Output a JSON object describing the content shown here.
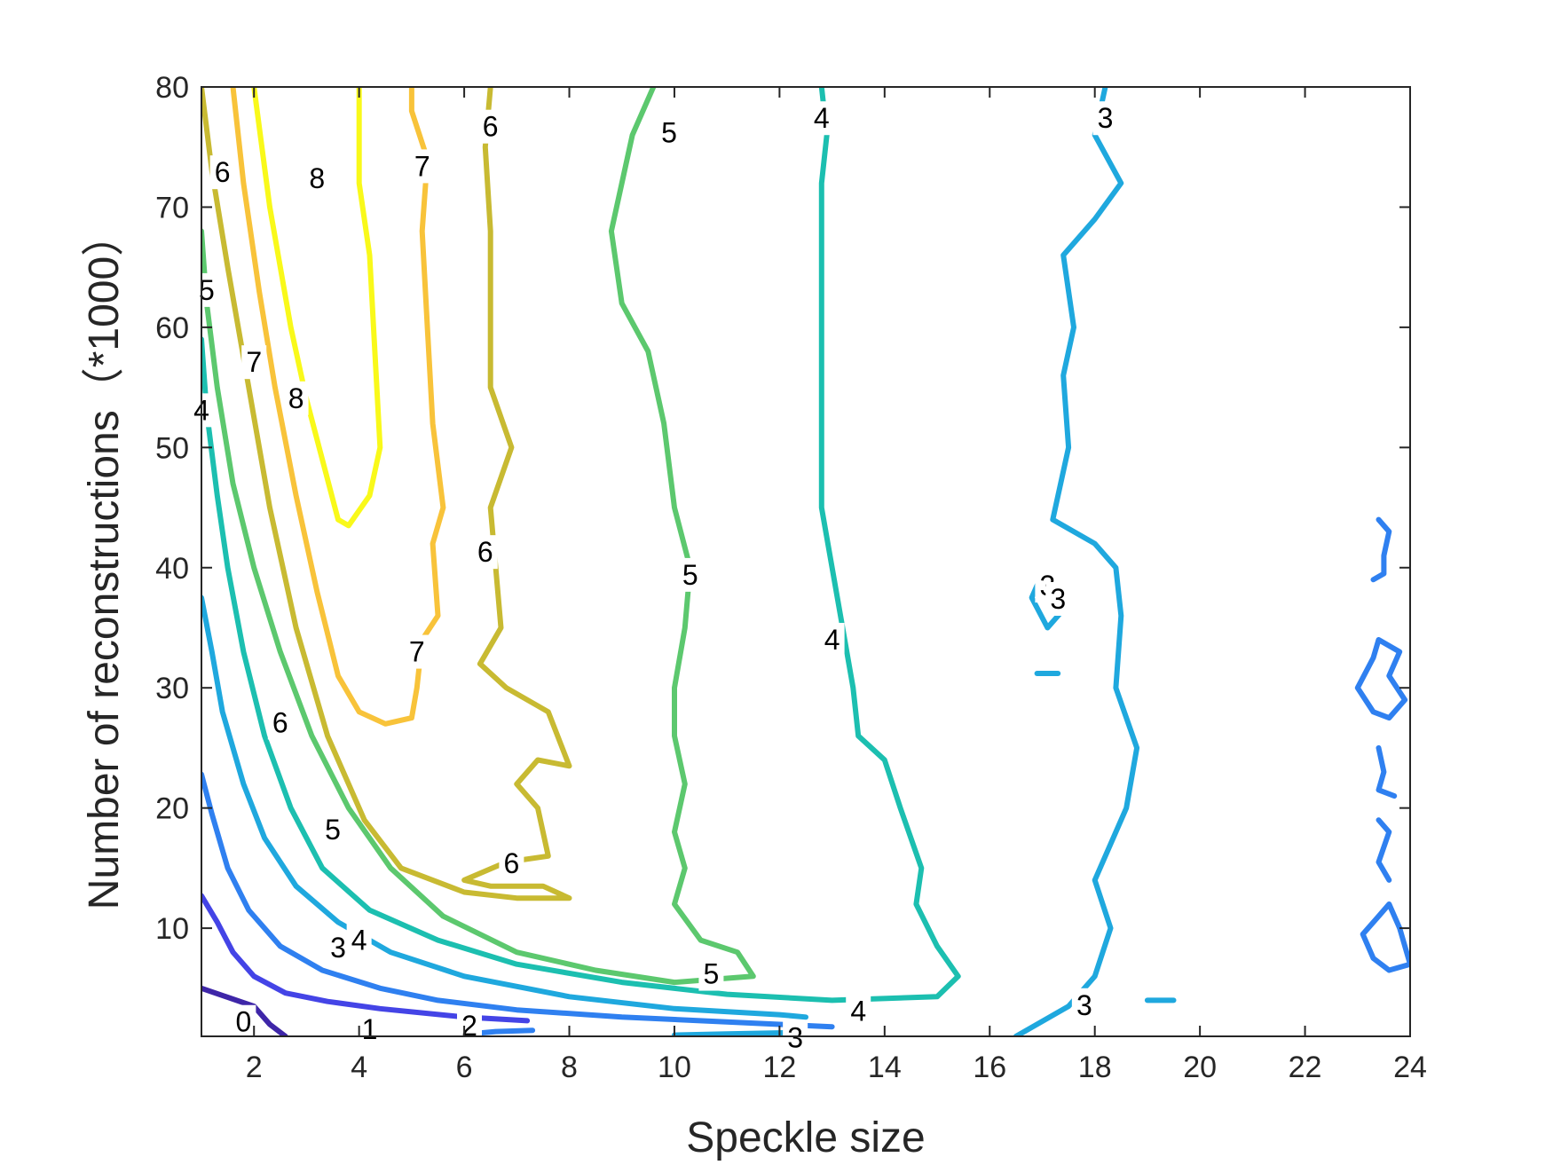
{
  "chart_data": {
    "type": "contour",
    "title": "",
    "xlabel": "Speckle size",
    "ylabel": "Number of reconstructions（*1000）",
    "xlim": [
      1,
      24
    ],
    "ylim": [
      1,
      80
    ],
    "xticks": [
      2,
      4,
      6,
      8,
      10,
      12,
      14,
      16,
      18,
      20,
      22,
      24
    ],
    "yticks": [
      10,
      20,
      30,
      40,
      50,
      60,
      70,
      80
    ],
    "grid": false,
    "colors": {
      "0": "#3e26a8",
      "1": "#4444e6",
      "2": "#2f80f0",
      "3": "#1fa8de",
      "4": "#1cbfb0",
      "5": "#5cc86e",
      "6": "#c8ba32",
      "7": "#f8c33a",
      "8": "#f9f91a"
    },
    "contours": [
      {
        "level": 0,
        "points": [
          [
            1.0,
            5.0
          ],
          [
            1.6,
            4.1
          ],
          [
            2.0,
            3.5
          ],
          [
            2.3,
            2.0
          ],
          [
            2.6,
            1.0
          ]
        ]
      },
      {
        "level": 1,
        "points": [
          [
            1.0,
            12.7
          ],
          [
            1.3,
            10.5
          ],
          [
            1.6,
            8.0
          ],
          [
            2.0,
            6.0
          ],
          [
            2.6,
            4.6
          ],
          [
            3.4,
            3.9
          ],
          [
            4.4,
            3.3
          ],
          [
            6.0,
            2.6
          ],
          [
            7.2,
            2.3
          ]
        ]
      },
      {
        "level": 2,
        "points": [
          [
            1.0,
            22.8
          ],
          [
            1.2,
            19.5
          ],
          [
            1.5,
            15.0
          ],
          [
            1.9,
            11.5
          ],
          [
            2.5,
            8.5
          ],
          [
            3.3,
            6.5
          ],
          [
            4.4,
            5.0
          ],
          [
            5.5,
            4.0
          ],
          [
            7.0,
            3.2
          ],
          [
            9.0,
            2.6
          ],
          [
            12.0,
            2.0
          ],
          [
            13.0,
            1.8
          ]
        ]
      },
      {
        "level": 2,
        "points": [
          [
            6.1,
            1.2
          ],
          [
            6.6,
            1.4
          ],
          [
            7.3,
            1.5
          ]
        ]
      },
      {
        "level": 3,
        "points": [
          [
            1.0,
            37.5
          ],
          [
            1.2,
            33.0
          ],
          [
            1.4,
            28.0
          ],
          [
            1.8,
            22.0
          ],
          [
            2.2,
            17.5
          ],
          [
            2.8,
            13.5
          ],
          [
            3.6,
            10.5
          ],
          [
            4.6,
            8.0
          ],
          [
            6.0,
            6.0
          ],
          [
            8.0,
            4.3
          ],
          [
            10.0,
            3.3
          ],
          [
            12.0,
            2.8
          ],
          [
            12.5,
            2.6
          ]
        ]
      },
      {
        "level": 3,
        "points": [
          [
            10.0,
            1.1
          ],
          [
            11.0,
            1.2
          ],
          [
            12.2,
            1.3
          ]
        ]
      },
      {
        "level": 3,
        "points": [
          [
            18.2,
            80.0
          ],
          [
            18.0,
            76.0
          ],
          [
            18.5,
            72.0
          ],
          [
            18.0,
            69.0
          ],
          [
            17.4,
            66.0
          ],
          [
            17.6,
            60.0
          ],
          [
            17.4,
            56.0
          ],
          [
            17.5,
            50.0
          ],
          [
            17.2,
            44.0
          ],
          [
            18.0,
            42.0
          ],
          [
            18.4,
            40.0
          ],
          [
            18.5,
            36.0
          ],
          [
            18.4,
            30.0
          ],
          [
            18.8,
            25.0
          ],
          [
            18.6,
            20.0
          ],
          [
            18.0,
            14.0
          ],
          [
            18.3,
            10.0
          ],
          [
            18.0,
            6.0
          ],
          [
            17.5,
            3.5
          ],
          [
            16.5,
            1.0
          ]
        ]
      },
      {
        "level": 3,
        "points": [
          [
            17.2,
            38.5
          ],
          [
            17.4,
            36.5
          ],
          [
            17.1,
            35.0
          ],
          [
            16.8,
            37.5
          ],
          [
            17.0,
            39.5
          ]
        ]
      },
      {
        "level": 3,
        "points": [
          [
            16.9,
            31.2
          ],
          [
            17.3,
            31.2
          ]
        ]
      },
      {
        "level": 3,
        "points": [
          [
            19.0,
            4.0
          ],
          [
            19.5,
            4.0
          ]
        ]
      },
      {
        "level": 4,
        "points": [
          [
            1.0,
            59.0
          ],
          [
            1.1,
            53.0
          ],
          [
            1.3,
            46.0
          ],
          [
            1.5,
            40.0
          ],
          [
            1.8,
            33.0
          ],
          [
            2.2,
            26.0
          ],
          [
            2.7,
            20.0
          ],
          [
            3.3,
            15.0
          ],
          [
            4.2,
            11.5
          ],
          [
            5.5,
            9.0
          ],
          [
            7.0,
            7.0
          ],
          [
            9.0,
            5.5
          ],
          [
            11.0,
            4.5
          ],
          [
            13.0,
            4.0
          ],
          [
            15.0,
            4.3
          ],
          [
            15.4,
            6.0
          ],
          [
            15.0,
            8.5
          ],
          [
            14.6,
            12.0
          ],
          [
            14.7,
            15.0
          ],
          [
            14.3,
            20.0
          ],
          [
            14.0,
            24.0
          ],
          [
            13.5,
            26.0
          ],
          [
            13.4,
            30.0
          ],
          [
            13.2,
            35.0
          ],
          [
            12.8,
            45.0
          ],
          [
            12.8,
            55.0
          ],
          [
            12.8,
            65.0
          ],
          [
            12.8,
            72.0
          ],
          [
            12.9,
            76.0
          ],
          [
            12.8,
            80.0
          ]
        ]
      },
      {
        "level": 5,
        "points": [
          [
            1.0,
            68.0
          ],
          [
            1.1,
            62.0
          ],
          [
            1.3,
            55.0
          ],
          [
            1.6,
            47.0
          ],
          [
            2.0,
            40.0
          ],
          [
            2.5,
            33.0
          ],
          [
            3.1,
            26.0
          ],
          [
            3.8,
            20.0
          ],
          [
            4.6,
            15.0
          ],
          [
            5.6,
            11.0
          ],
          [
            7.0,
            8.0
          ],
          [
            8.5,
            6.5
          ],
          [
            10.0,
            5.5
          ],
          [
            11.5,
            6.0
          ],
          [
            11.2,
            8.0
          ],
          [
            10.5,
            9.0
          ],
          [
            10.0,
            12.0
          ],
          [
            10.2,
            15.0
          ],
          [
            10.0,
            18.0
          ],
          [
            10.2,
            22.0
          ],
          [
            10.0,
            26.0
          ],
          [
            10.0,
            30.0
          ],
          [
            10.2,
            35.0
          ],
          [
            10.3,
            40.0
          ],
          [
            10.0,
            45.0
          ],
          [
            9.8,
            52.0
          ],
          [
            9.5,
            58.0
          ],
          [
            9.0,
            62.0
          ],
          [
            8.8,
            68.0
          ],
          [
            9.2,
            76.0
          ],
          [
            9.6,
            80.0
          ]
        ]
      },
      {
        "level": 6,
        "points": [
          [
            1.0,
            80.0
          ],
          [
            1.2,
            73.0
          ],
          [
            1.5,
            65.0
          ],
          [
            1.9,
            55.0
          ],
          [
            2.3,
            45.0
          ],
          [
            2.8,
            35.0
          ],
          [
            3.4,
            26.0
          ],
          [
            4.1,
            19.0
          ],
          [
            4.8,
            15.0
          ],
          [
            6.0,
            13.0
          ],
          [
            7.0,
            12.5
          ],
          [
            8.0,
            12.5
          ],
          [
            7.5,
            13.5
          ],
          [
            6.5,
            13.5
          ],
          [
            6.0,
            14.0
          ],
          [
            6.8,
            15.5
          ],
          [
            7.6,
            16.0
          ],
          [
            7.4,
            20.0
          ],
          [
            7.0,
            22.0
          ],
          [
            7.4,
            24.0
          ],
          [
            8.0,
            23.5
          ],
          [
            7.6,
            28.0
          ],
          [
            6.8,
            30.0
          ],
          [
            6.3,
            32.0
          ],
          [
            6.7,
            35.0
          ],
          [
            6.6,
            40.0
          ],
          [
            6.5,
            45.0
          ],
          [
            6.9,
            50.0
          ],
          [
            6.5,
            55.0
          ],
          [
            6.5,
            60.0
          ],
          [
            6.5,
            68.0
          ],
          [
            6.4,
            75.0
          ],
          [
            6.5,
            80.0
          ]
        ]
      },
      {
        "level": 7,
        "points": [
          [
            1.6,
            80.0
          ],
          [
            1.8,
            72.0
          ],
          [
            2.1,
            63.0
          ],
          [
            2.4,
            55.0
          ],
          [
            2.8,
            46.0
          ],
          [
            3.2,
            38.0
          ],
          [
            3.6,
            31.0
          ],
          [
            4.0,
            28.0
          ],
          [
            4.5,
            27.0
          ],
          [
            5.0,
            27.5
          ],
          [
            5.1,
            30.0
          ],
          [
            5.2,
            34.0
          ],
          [
            5.5,
            36.0
          ],
          [
            5.4,
            42.0
          ],
          [
            5.6,
            45.0
          ],
          [
            5.4,
            52.0
          ],
          [
            5.3,
            60.0
          ],
          [
            5.2,
            68.0
          ],
          [
            5.3,
            74.0
          ],
          [
            5.0,
            78.0
          ],
          [
            5.0,
            80.0
          ]
        ]
      },
      {
        "level": 8,
        "points": [
          [
            2.0,
            80.0
          ],
          [
            2.3,
            70.0
          ],
          [
            2.7,
            60.0
          ],
          [
            3.0,
            54.0
          ],
          [
            3.3,
            49.0
          ],
          [
            3.6,
            44.0
          ],
          [
            3.8,
            43.5
          ],
          [
            4.2,
            46.0
          ],
          [
            4.4,
            50.0
          ],
          [
            4.3,
            58.0
          ],
          [
            4.2,
            66.0
          ],
          [
            4.0,
            72.0
          ],
          [
            4.0,
            80.0
          ]
        ]
      },
      {
        "level": 2,
        "points": [
          [
            23.4,
            44.0
          ],
          [
            23.6,
            43.0
          ],
          [
            23.5,
            41.0
          ],
          [
            23.5,
            39.5
          ],
          [
            23.3,
            39.0
          ]
        ]
      },
      {
        "level": 2,
        "points": [
          [
            23.4,
            34.0
          ],
          [
            23.8,
            33.0
          ],
          [
            23.6,
            31.0
          ],
          [
            23.9,
            29.0
          ],
          [
            23.6,
            27.5
          ],
          [
            23.3,
            28.0
          ],
          [
            23.0,
            30.0
          ],
          [
            23.3,
            32.5
          ],
          [
            23.4,
            34.0
          ]
        ]
      },
      {
        "level": 2,
        "points": [
          [
            23.4,
            25.0
          ],
          [
            23.5,
            23.0
          ],
          [
            23.4,
            21.5
          ],
          [
            23.7,
            21.0
          ]
        ]
      },
      {
        "level": 2,
        "points": [
          [
            23.4,
            19.0
          ],
          [
            23.6,
            18.0
          ],
          [
            23.4,
            15.5
          ],
          [
            23.6,
            14.0
          ]
        ]
      },
      {
        "level": 2,
        "points": [
          [
            23.4,
            11.0
          ],
          [
            23.6,
            12.0
          ],
          [
            23.8,
            10.0
          ],
          [
            24.0,
            7.0
          ],
          [
            23.6,
            6.5
          ],
          [
            23.3,
            7.5
          ],
          [
            23.1,
            9.5
          ],
          [
            23.4,
            11.0
          ]
        ]
      }
    ],
    "labels": [
      {
        "text": "0",
        "level": 0,
        "x": 1.8,
        "y": 2.2
      },
      {
        "text": "1",
        "level": 1,
        "x": 4.2,
        "y": 1.6
      },
      {
        "text": "2",
        "level": 2,
        "x": 6.1,
        "y": 1.9
      },
      {
        "text": "3",
        "level": 3,
        "x": 3.6,
        "y": 8.4
      },
      {
        "text": "3",
        "level": 3,
        "x": 12.3,
        "y": 0.9
      },
      {
        "text": "3",
        "level": 3,
        "x": 17.8,
        "y": 3.6
      },
      {
        "text": "3",
        "level": 3,
        "x": 17.1,
        "y": 38.5
      },
      {
        "text": "3",
        "level": 3,
        "x": 17.3,
        "y": 37.4
      },
      {
        "text": "3",
        "level": 3,
        "x": 18.2,
        "y": 77.4
      },
      {
        "text": "4",
        "level": 4,
        "x": 4.0,
        "y": 9.0
      },
      {
        "text": "4",
        "level": 4,
        "x": 1.0,
        "y": 53.1
      },
      {
        "text": "4",
        "level": 4,
        "x": 13.5,
        "y": 3.1
      },
      {
        "text": "4",
        "level": 4,
        "x": 13.0,
        "y": 34.0
      },
      {
        "text": "4",
        "level": 4,
        "x": 12.8,
        "y": 77.4
      },
      {
        "text": "5",
        "level": 5,
        "x": 3.5,
        "y": 18.2
      },
      {
        "text": "5",
        "level": 5,
        "x": 1.1,
        "y": 63.1
      },
      {
        "text": "5",
        "level": 5,
        "x": 10.7,
        "y": 6.2
      },
      {
        "text": "5",
        "level": 5,
        "x": 10.3,
        "y": 39.4
      },
      {
        "text": "5",
        "level": 5,
        "x": 9.9,
        "y": 76.2
      },
      {
        "text": "6",
        "level": 6,
        "x": 2.5,
        "y": 27.1
      },
      {
        "text": "6",
        "level": 6,
        "x": 1.4,
        "y": 72.9
      },
      {
        "text": "6",
        "level": 6,
        "x": 6.9,
        "y": 15.4
      },
      {
        "text": "6",
        "level": 6,
        "x": 6.4,
        "y": 41.3
      },
      {
        "text": "6",
        "level": 6,
        "x": 6.5,
        "y": 76.7
      },
      {
        "text": "7",
        "level": 7,
        "x": 2.0,
        "y": 57.1
      },
      {
        "text": "7",
        "level": 7,
        "x": 5.1,
        "y": 33.0
      },
      {
        "text": "7",
        "level": 7,
        "x": 5.2,
        "y": 73.4
      },
      {
        "text": "8",
        "level": 8,
        "x": 2.8,
        "y": 54.1
      },
      {
        "text": "8",
        "level": 8,
        "x": 3.2,
        "y": 72.4
      }
    ]
  }
}
